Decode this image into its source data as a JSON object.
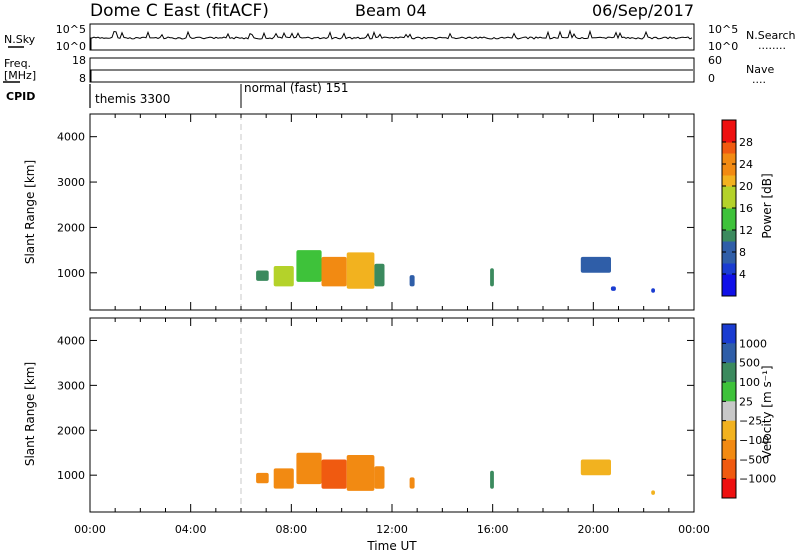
{
  "header": {
    "title": "Dome C East (fitACF)",
    "beam": "Beam 04",
    "date": "06/Sep/2017"
  },
  "top_panels": {
    "nsky": {
      "left_label": "N.Sky",
      "left_ticks": [
        "10^5",
        "10^0"
      ],
      "right_ticks": [
        "10^5",
        "10^0"
      ],
      "right_label": "N.Search",
      "right_legend": "........"
    },
    "freq": {
      "left_label_1": "Freq.",
      "left_label_2": "[MHz]",
      "left_ticks": [
        "18",
        "8"
      ],
      "right_ticks": [
        "60",
        "0"
      ],
      "right_label": "Nave",
      "right_legend": "...."
    },
    "cpid": {
      "label": "CPID",
      "segments": [
        {
          "label": "themis 3300",
          "start_hour": 0.0,
          "end_hour": 6.0
        },
        {
          "label": "normal (fast) 151",
          "start_hour": 6.0,
          "end_hour": 24.0
        }
      ]
    }
  },
  "chart_data": [
    {
      "type": "heatmap",
      "name": "power",
      "ylabel": "Slant Range [km]",
      "xlabel": "",
      "xlim": [
        0,
        24
      ],
      "ylim": [
        180,
        4500
      ],
      "y_ticks": [
        "1000",
        "2000",
        "3000",
        "4000"
      ],
      "x_ticks": [
        "00:00",
        "04:00",
        "08:00",
        "12:00",
        "16:00",
        "20:00",
        "00:00"
      ],
      "colorbar": {
        "label": "Power [dB]",
        "range": [
          0,
          32
        ],
        "ticks": [
          "4",
          "8",
          "12",
          "16",
          "20",
          "24",
          "28"
        ]
      },
      "patches": [
        {
          "x0": 6.6,
          "x1": 7.1,
          "y0": 820,
          "y1": 1050,
          "value": 10
        },
        {
          "x0": 7.3,
          "x1": 8.1,
          "y0": 700,
          "y1": 1150,
          "value": 18
        },
        {
          "x0": 8.2,
          "x1": 9.2,
          "y0": 800,
          "y1": 1500,
          "value": 14
        },
        {
          "x0": 9.2,
          "x1": 10.2,
          "y0": 700,
          "y1": 1350,
          "value": 24
        },
        {
          "x0": 10.2,
          "x1": 11.3,
          "y0": 650,
          "y1": 1450,
          "value": 22
        },
        {
          "x0": 11.3,
          "x1": 11.7,
          "y0": 700,
          "y1": 1200,
          "value": 12
        },
        {
          "x0": 12.7,
          "x1": 12.9,
          "y0": 700,
          "y1": 950,
          "value": 8
        },
        {
          "x0": 15.9,
          "x1": 16.05,
          "y0": 700,
          "y1": 1100,
          "value": 12
        },
        {
          "x0": 19.5,
          "x1": 20.7,
          "y0": 1000,
          "y1": 1350,
          "value": 8
        },
        {
          "x0": 20.7,
          "x1": 20.9,
          "y0": 600,
          "y1": 700,
          "value": 6
        },
        {
          "x0": 22.3,
          "x1": 22.45,
          "y0": 560,
          "y1": 660,
          "value": 5
        }
      ]
    },
    {
      "type": "heatmap",
      "name": "velocity",
      "ylabel": "Slant Range [km]",
      "xlabel": "Time UT",
      "xlim": [
        0,
        24
      ],
      "ylim": [
        180,
        4500
      ],
      "y_ticks": [
        "1000",
        "2000",
        "3000",
        "4000"
      ],
      "x_ticks": [
        "00:00",
        "04:00",
        "08:00",
        "12:00",
        "16:00",
        "20:00",
        "00:00"
      ],
      "colorbar": {
        "label": "Velocity [m s⁻¹]",
        "ticks": [
          "1000",
          "500",
          "100",
          "25",
          "−25",
          "−100",
          "−500",
          "−1000"
        ],
        "colors": [
          "#1a3cd1",
          "#2f5ea8",
          "#3b8a5e",
          "#3ec23a",
          "#c8c8c8",
          "#f2b21f",
          "#f28a12",
          "#f05a10",
          "#ee1010"
        ]
      },
      "patches": [
        {
          "x0": 6.6,
          "x1": 7.1,
          "y0": 820,
          "y1": 1050,
          "value": -500
        },
        {
          "x0": 7.3,
          "x1": 8.1,
          "y0": 700,
          "y1": 1150,
          "value": -300
        },
        {
          "x0": 8.2,
          "x1": 9.2,
          "y0": 800,
          "y1": 1500,
          "value": -200
        },
        {
          "x0": 9.2,
          "x1": 10.2,
          "y0": 700,
          "y1": 1350,
          "value": -600
        },
        {
          "x0": 10.2,
          "x1": 11.3,
          "y0": 650,
          "y1": 1450,
          "value": -300
        },
        {
          "x0": 11.3,
          "x1": 11.7,
          "y0": 700,
          "y1": 1200,
          "value": -200
        },
        {
          "x0": 12.7,
          "x1": 12.9,
          "y0": 700,
          "y1": 950,
          "value": -200
        },
        {
          "x0": 15.9,
          "x1": 16.05,
          "y0": 700,
          "y1": 1100,
          "value": 200
        },
        {
          "x0": 19.5,
          "x1": 20.7,
          "y0": 1000,
          "y1": 1350,
          "value": -60
        },
        {
          "x0": 22.3,
          "x1": 22.45,
          "y0": 560,
          "y1": 660,
          "value": -100
        }
      ]
    }
  ],
  "colors": {
    "frame": "#000000",
    "cpid_divider": "#c8c8c8"
  }
}
